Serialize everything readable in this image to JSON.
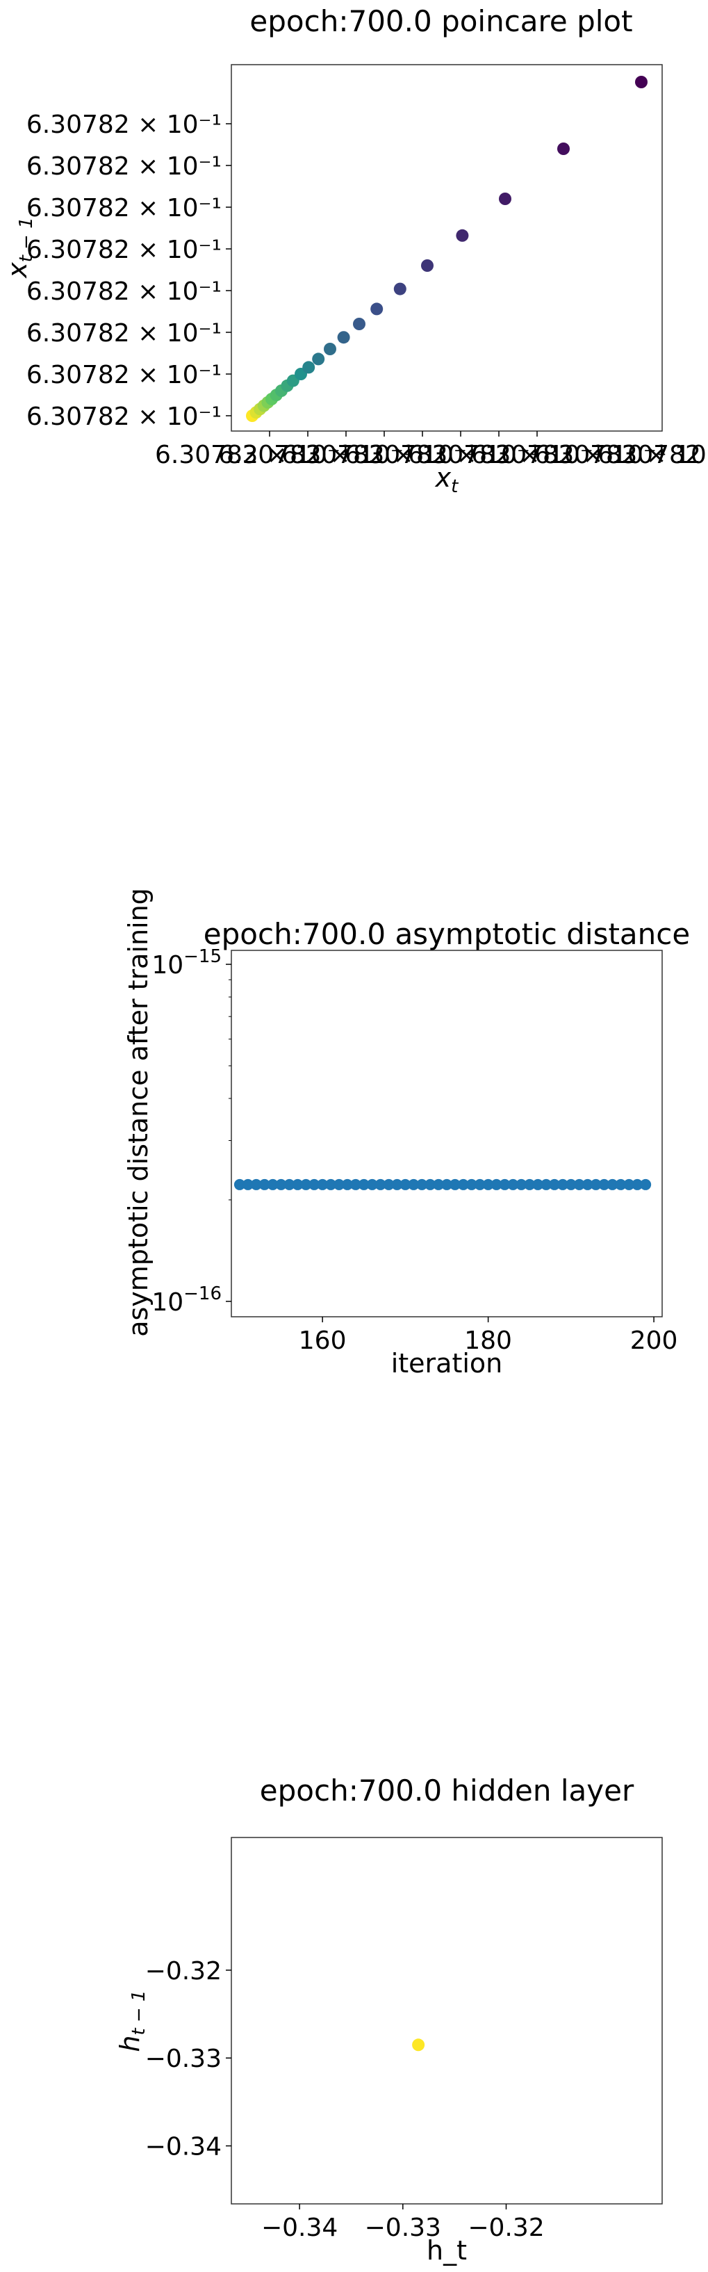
{
  "chart_data": [
    {
      "type": "scatter",
      "title": "epoch:700.0 poincare plot",
      "xlabel": "x_t",
      "ylabel": "x_{t-1}",
      "x_tick_labels": [
        "6.30782 × 10⁻¹",
        "6.30782 × 10⁻¹",
        "6.30782 × 10⁻¹",
        "6.30782 × 10⁻¹",
        "6.30782 × 10⁻¹",
        "6.30782 × 10⁻¹",
        "6.30782 × 10⁻¹",
        "6.30782 × 10⁻¹"
      ],
      "y_tick_labels": [
        "6.30782 × 10⁻¹",
        "6.30782 × 10⁻¹",
        "6.30782 × 10⁻¹",
        "6.30782 × 10⁻¹",
        "6.30782 × 10⁻¹",
        "6.30782 × 10⁻¹",
        "6.30782 × 10⁻¹",
        "6.30782 × 10⁻¹"
      ],
      "xlim": [
        0,
        1
      ],
      "ylim": [
        0,
        1
      ],
      "colormap": "viridis",
      "points": [
        {
          "x": 0.0,
          "y": 0.0,
          "c": 1.0
        },
        {
          "x": 0.01,
          "y": 0.01,
          "c": 0.95
        },
        {
          "x": 0.02,
          "y": 0.02,
          "c": 0.9
        },
        {
          "x": 0.03,
          "y": 0.03,
          "c": 0.85
        },
        {
          "x": 0.04,
          "y": 0.04,
          "c": 0.8
        },
        {
          "x": 0.05,
          "y": 0.05,
          "c": 0.75
        },
        {
          "x": 0.062,
          "y": 0.062,
          "c": 0.7
        },
        {
          "x": 0.075,
          "y": 0.075,
          "c": 0.65
        },
        {
          "x": 0.09,
          "y": 0.09,
          "c": 0.6
        },
        {
          "x": 0.105,
          "y": 0.105,
          "c": 0.55
        },
        {
          "x": 0.125,
          "y": 0.125,
          "c": 0.5
        },
        {
          "x": 0.145,
          "y": 0.145,
          "c": 0.45
        },
        {
          "x": 0.17,
          "y": 0.17,
          "c": 0.4
        },
        {
          "x": 0.2,
          "y": 0.2,
          "c": 0.36
        },
        {
          "x": 0.235,
          "y": 0.235,
          "c": 0.32
        },
        {
          "x": 0.275,
          "y": 0.275,
          "c": 0.28
        },
        {
          "x": 0.32,
          "y": 0.32,
          "c": 0.24
        },
        {
          "x": 0.38,
          "y": 0.38,
          "c": 0.2
        },
        {
          "x": 0.45,
          "y": 0.45,
          "c": 0.16
        },
        {
          "x": 0.54,
          "y": 0.54,
          "c": 0.12
        },
        {
          "x": 0.65,
          "y": 0.65,
          "c": 0.08
        },
        {
          "x": 0.8,
          "y": 0.8,
          "c": 0.04
        },
        {
          "x": 1.0,
          "y": 1.0,
          "c": 0.0
        }
      ],
      "point_color": "#1f77b4"
    },
    {
      "type": "scatter",
      "title": "epoch:700.0 asymptotic distance",
      "xlabel": "iteration",
      "ylabel": "asymptotic distance after training",
      "xlim": [
        149,
        201
      ],
      "ylim": [
        9e-17,
        1.1e-15
      ],
      "yscale": "log",
      "x_ticks": [
        160,
        180,
        200
      ],
      "y_ticks": [
        {
          "value": 1e-16,
          "base": "10",
          "exp": "−16"
        },
        {
          "value": 1e-15,
          "base": "10",
          "exp": "−15"
        }
      ],
      "x_start": 150,
      "x_end": 199,
      "y_value": 2.22e-16,
      "point_color": "#1f77b4"
    },
    {
      "type": "scatter",
      "title": "epoch:700.0 hidden layer",
      "xlabel": "h_t",
      "ylabel": "h_{t-1}",
      "xlim": [
        -0.3466,
        -0.3049
      ],
      "ylim": [
        -0.3466,
        -0.3049
      ],
      "x_ticks": [
        -0.34,
        -0.33,
        -0.32
      ],
      "y_ticks": [
        -0.34,
        -0.33,
        -0.32
      ],
      "tick_labels": [
        "−0.34",
        "−0.33",
        "−0.32"
      ],
      "points": [
        {
          "x": -0.3285,
          "y": -0.3285
        }
      ],
      "point_color": "#fde725"
    }
  ]
}
